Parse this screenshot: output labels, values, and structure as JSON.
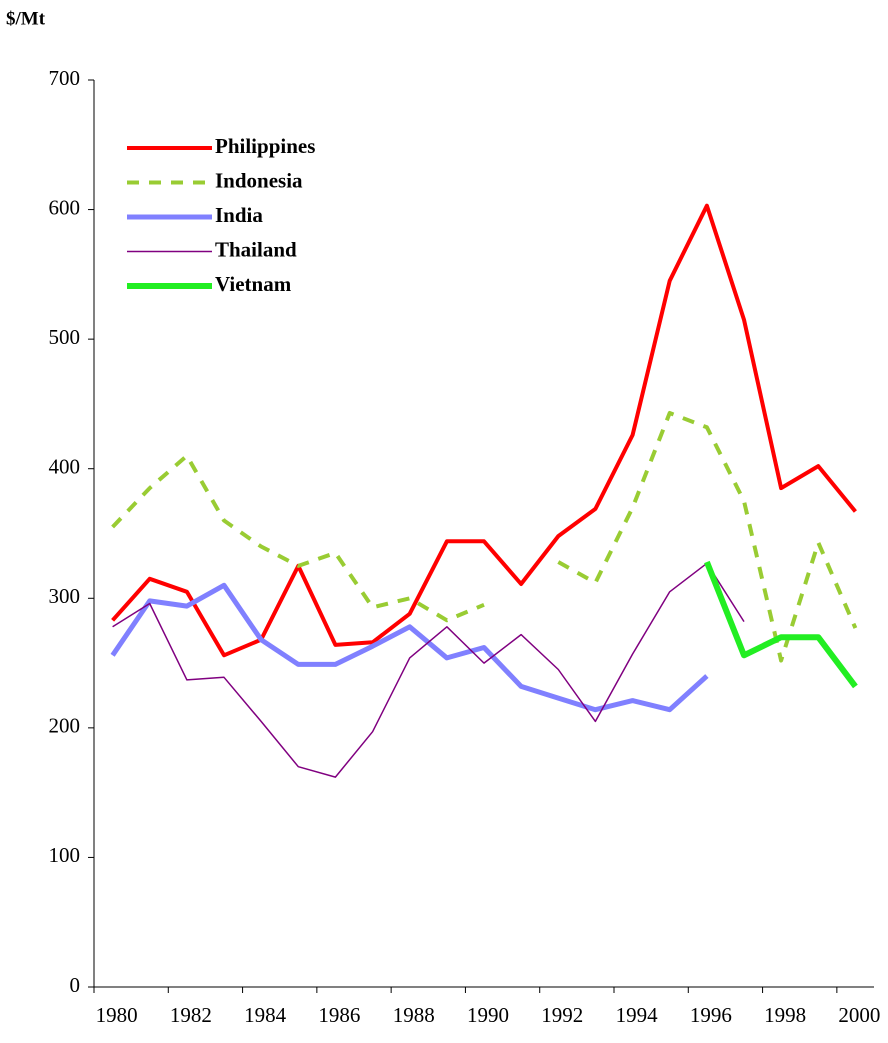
{
  "chart_data": {
    "type": "line",
    "y_label": "$/Mt",
    "categories": [
      "1980",
      null,
      "1982",
      null,
      "1984",
      null,
      "1986",
      null,
      "1988",
      null,
      "1990",
      null,
      "1992",
      null,
      "1994",
      null,
      "1996",
      null,
      "1998",
      null,
      "2000"
    ],
    "series": [
      {
        "name": "Philippines",
        "color": "#ff0000",
        "style": "solid",
        "values": [
          283,
          315,
          305,
          256,
          268,
          325,
          264,
          266,
          288,
          344,
          344,
          311,
          348,
          369,
          426,
          545,
          603,
          515,
          385,
          402,
          367
        ]
      },
      {
        "name": "Indonesia",
        "color": "#99cc33",
        "style": "dashed",
        "values": [
          355,
          385,
          410,
          360,
          340,
          325,
          335,
          293,
          300,
          283,
          295,
          null,
          328,
          312,
          370,
          443,
          432,
          375,
          252,
          343,
          277
        ]
      },
      {
        "name": "India",
        "color": "#8080ff",
        "style": "solid",
        "values": [
          256,
          298,
          294,
          310,
          268,
          249,
          249,
          263,
          278,
          254,
          262,
          232,
          223,
          214,
          221,
          214,
          240,
          null,
          null,
          null,
          null
        ]
      },
      {
        "name": "Thailand",
        "color": "#800080",
        "style": "solid",
        "values": [
          278,
          296,
          237,
          239,
          205,
          170,
          162,
          197,
          254,
          278,
          250,
          272,
          245,
          205,
          257,
          305,
          327,
          282,
          null,
          null,
          null
        ]
      },
      {
        "name": "Vietnam",
        "color": "#22ee22",
        "style": "solid",
        "values": [
          null,
          null,
          null,
          null,
          null,
          null,
          null,
          null,
          null,
          null,
          null,
          null,
          null,
          null,
          null,
          null,
          328,
          256,
          270,
          270,
          232
        ]
      }
    ],
    "ylim": [
      0,
      700
    ],
    "yticks": [
      0,
      100,
      200,
      300,
      400,
      500,
      600,
      700
    ],
    "grid": false,
    "legend": "upper left"
  }
}
